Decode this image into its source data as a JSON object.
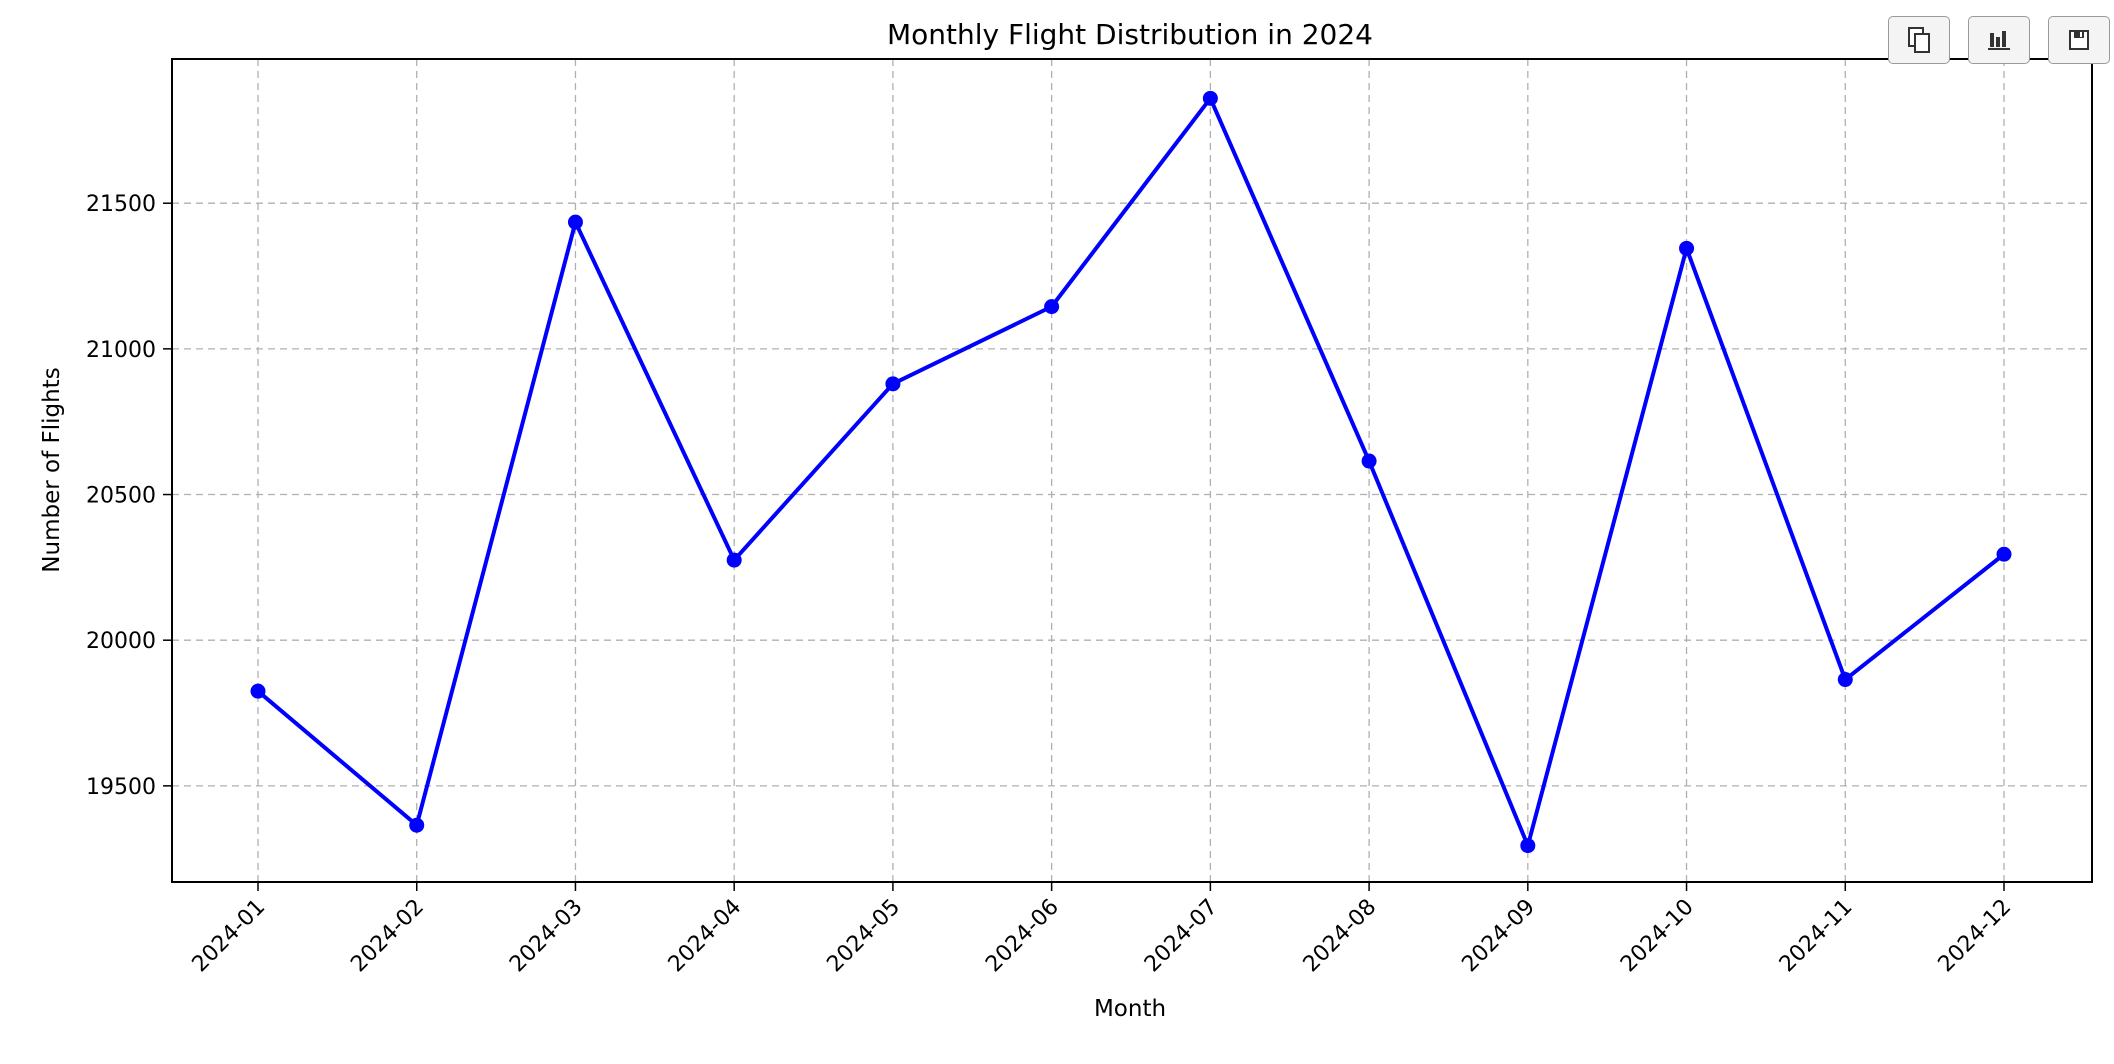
{
  "toolbar": {
    "buttons": [
      {
        "name": "copy-button",
        "icon": "copy-icon"
      },
      {
        "name": "chart-button",
        "icon": "bar-chart-icon"
      },
      {
        "name": "save-button",
        "icon": "save-icon"
      }
    ]
  },
  "chart_data": {
    "type": "line",
    "title": "Monthly Flight Distribution in 2024",
    "xlabel": "Month",
    "ylabel": "Number of Flights",
    "categories": [
      "2024-01",
      "2024-02",
      "2024-03",
      "2024-04",
      "2024-05",
      "2024-06",
      "2024-07",
      "2024-08",
      "2024-09",
      "2024-10",
      "2024-11",
      "2024-12"
    ],
    "series": [
      {
        "values": [
          19825,
          19365,
          21435,
          20275,
          20880,
          21145,
          21860,
          20615,
          19295,
          21345,
          19865,
          20295
        ],
        "color": "#0000ff",
        "marker": "circle"
      }
    ],
    "ylim": [
      19170,
      21995
    ],
    "yticks": [
      19500,
      20000,
      20500,
      21000,
      21500
    ],
    "grid": true,
    "grid_style": "dashed"
  }
}
